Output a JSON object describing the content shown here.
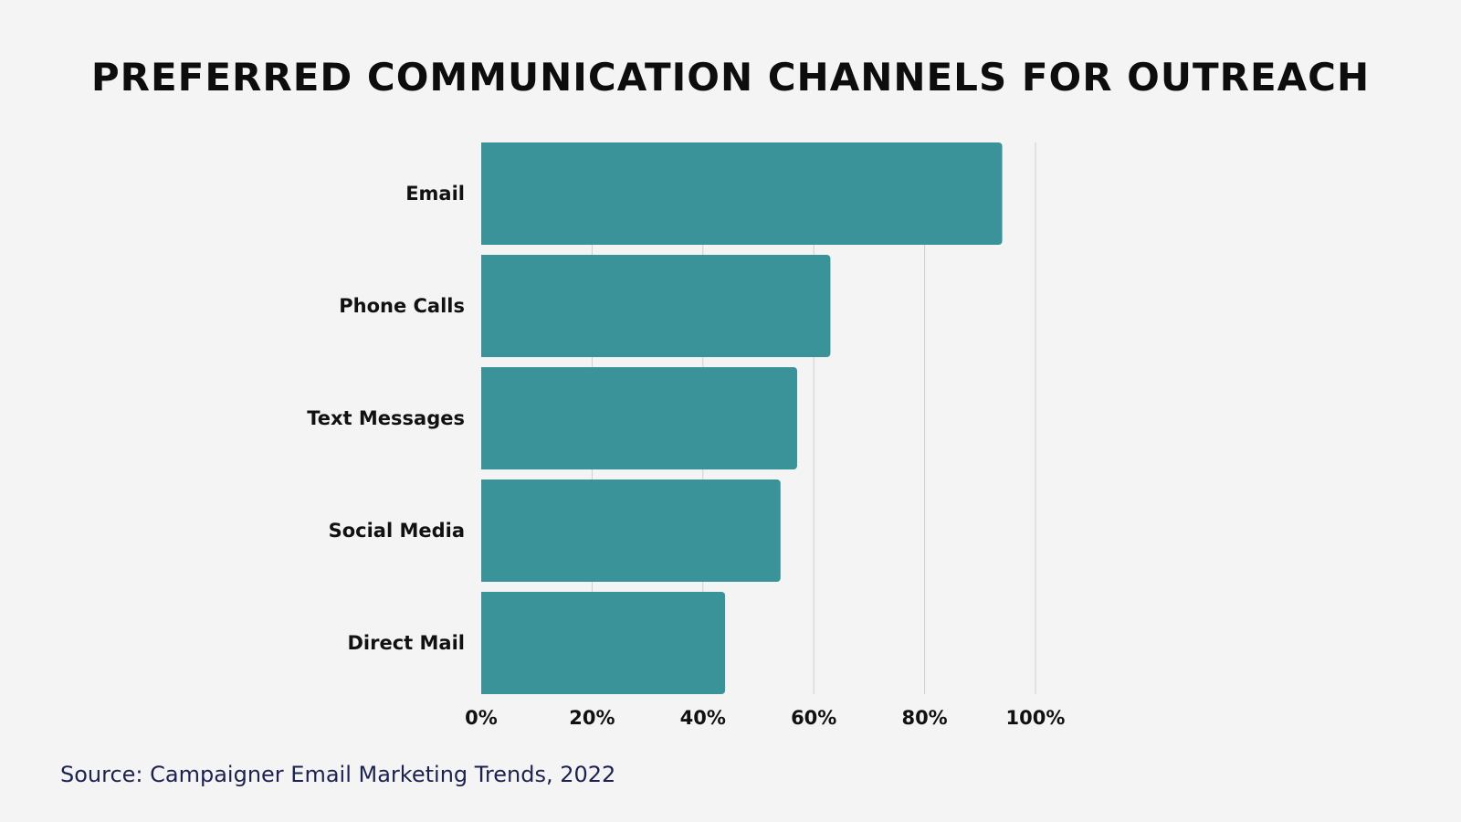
{
  "chart_data": {
    "type": "bar",
    "orientation": "horizontal",
    "title": "PREFERRED COMMUNICATION CHANNELS FOR OUTREACH",
    "categories": [
      "Email",
      "Phone Calls",
      "Text Messages",
      "Social Media",
      "Direct Mail"
    ],
    "values": [
      94,
      63,
      57,
      54,
      44
    ],
    "xlim": [
      0,
      100
    ],
    "xticks": [
      "0%",
      "20%",
      "40%",
      "60%",
      "80%",
      "100%"
    ],
    "xtick_values": [
      0,
      20,
      40,
      60,
      80,
      100
    ],
    "grid": true,
    "legend": "none",
    "bar_color": "#3a9398",
    "source": "Source: Campaigner Email Marketing Trends, 2022"
  },
  "colors": {
    "background": "#f4f4f4",
    "bar": "#3a9398",
    "grid": "#cfcfcf",
    "title": "#0d0d0d",
    "source": "#1c2250"
  }
}
